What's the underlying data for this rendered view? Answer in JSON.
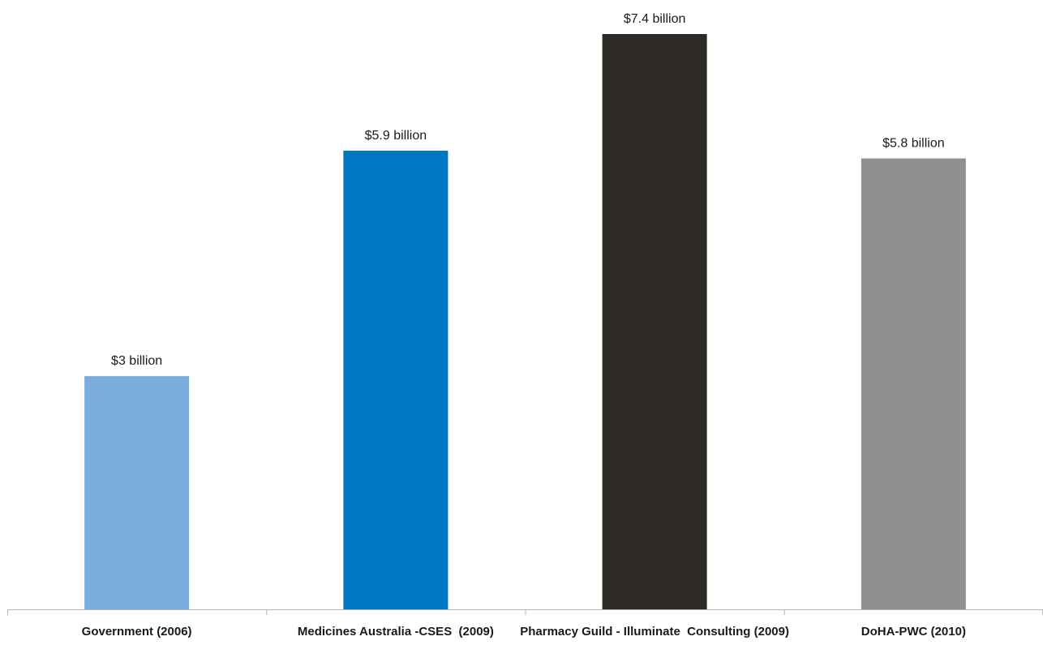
{
  "chart_data": {
    "type": "bar",
    "title": "",
    "xlabel": "",
    "ylabel": "",
    "ylim": [
      0,
      7.4
    ],
    "grid": false,
    "legend": "none",
    "categories": [
      "Government (2006)",
      "Medicines Australia -CSES  (2009)",
      "Pharmacy Guild - Illuminate  Consulting (2009)",
      "DoHA-PWC (2010)"
    ],
    "values": [
      3,
      5.9,
      7.4,
      5.8
    ],
    "data_labels": [
      "$3 billion",
      "$5.9 billion",
      "$7.4 billion",
      "$5.8 billion"
    ],
    "colors": [
      "#7aaddc",
      "#0077c0",
      "#2d2a26",
      "#909090"
    ]
  }
}
